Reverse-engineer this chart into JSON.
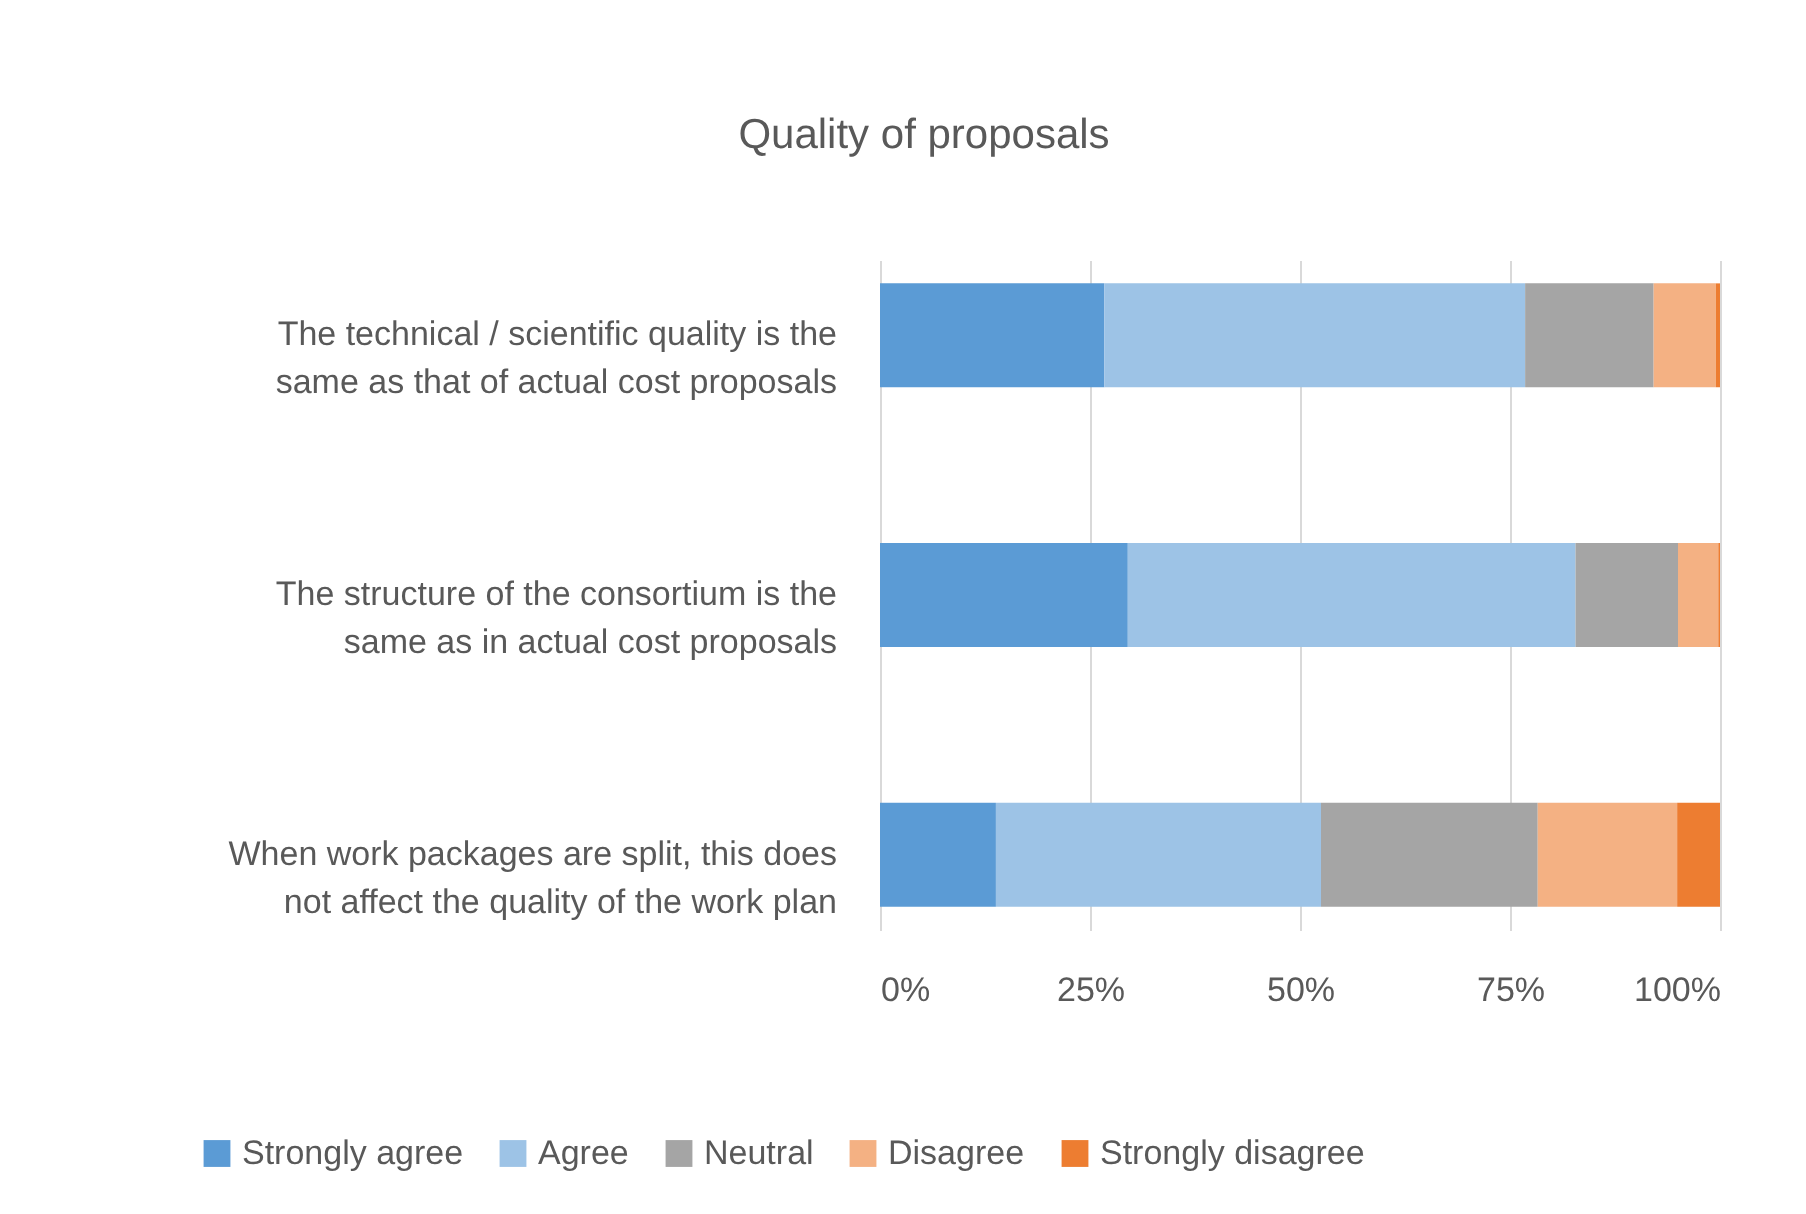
{
  "chart_data": {
    "type": "bar",
    "orientation": "horizontal",
    "stacked": true,
    "title": "Quality of proposals",
    "categories": [
      "The technical / scientific quality is the same as that of actual cost proposals",
      "The structure of the consortium is the same as in actual cost proposals",
      "When work packages are split, this does not affect the quality of the work plan"
    ],
    "series": [
      {
        "name": "Strongly agree",
        "color": "#5b9bd5",
        "values": [
          26.7,
          29.5,
          13.8
        ]
      },
      {
        "name": "Agree",
        "color": "#9dc3e6",
        "values": [
          50.1,
          53.3,
          38.7
        ]
      },
      {
        "name": "Neutral",
        "color": "#a5a5a5",
        "values": [
          15.3,
          12.2,
          25.8
        ]
      },
      {
        "name": "Disagree",
        "color": "#f4b183",
        "values": [
          7.4,
          4.8,
          16.6
        ]
      },
      {
        "name": "Strongly disagree",
        "color": "#ed7d31",
        "values": [
          0.5,
          0.2,
          5.1
        ]
      }
    ],
    "xlim": [
      0,
      100
    ],
    "xticks": [
      {
        "value": 0,
        "label": "0%"
      },
      {
        "value": 25,
        "label": "25%"
      },
      {
        "value": 50,
        "label": "50%"
      },
      {
        "value": 75,
        "label": "75%"
      },
      {
        "value": 100,
        "label": "100%"
      }
    ],
    "grid": "x",
    "legend": "bottom"
  }
}
